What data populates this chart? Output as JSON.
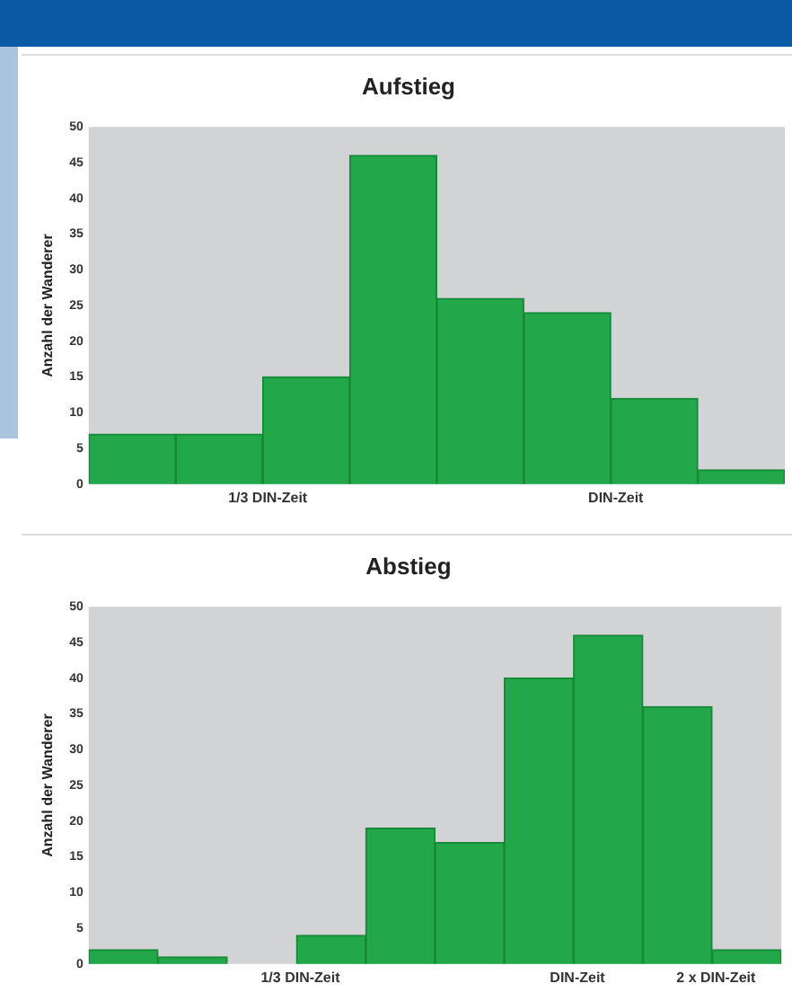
{
  "chart_data": [
    {
      "type": "bar",
      "title": "Aufstieg",
      "ylabel": "Anzahl der Wanderer",
      "categories": [
        null,
        null,
        "1/3 DIN-Zeit",
        null,
        null,
        null,
        "DIN-Zeit",
        null
      ],
      "values": [
        7,
        7,
        15,
        46,
        26,
        24,
        12,
        2
      ],
      "color": "#22a84a",
      "ylim": [
        0,
        50
      ],
      "yticks": [
        0,
        5,
        10,
        15,
        20,
        25,
        30,
        35,
        40,
        45,
        50
      ],
      "grid": false,
      "legend": false
    },
    {
      "type": "bar",
      "title": "Abstieg",
      "ylabel": "Anzahl der Wanderer",
      "categories": [
        null,
        null,
        null,
        "1/3 DIN-Zeit",
        null,
        null,
        null,
        "DIN-Zeit",
        null,
        "2 x DIN-Zeit"
      ],
      "values": [
        2,
        1,
        0,
        4,
        19,
        17,
        40,
        46,
        36,
        2
      ],
      "color": "#22a84a",
      "ylim": [
        0,
        50
      ],
      "yticks": [
        0,
        5,
        10,
        15,
        20,
        25,
        30,
        35,
        40,
        45,
        50
      ],
      "grid": false,
      "legend": false
    }
  ]
}
